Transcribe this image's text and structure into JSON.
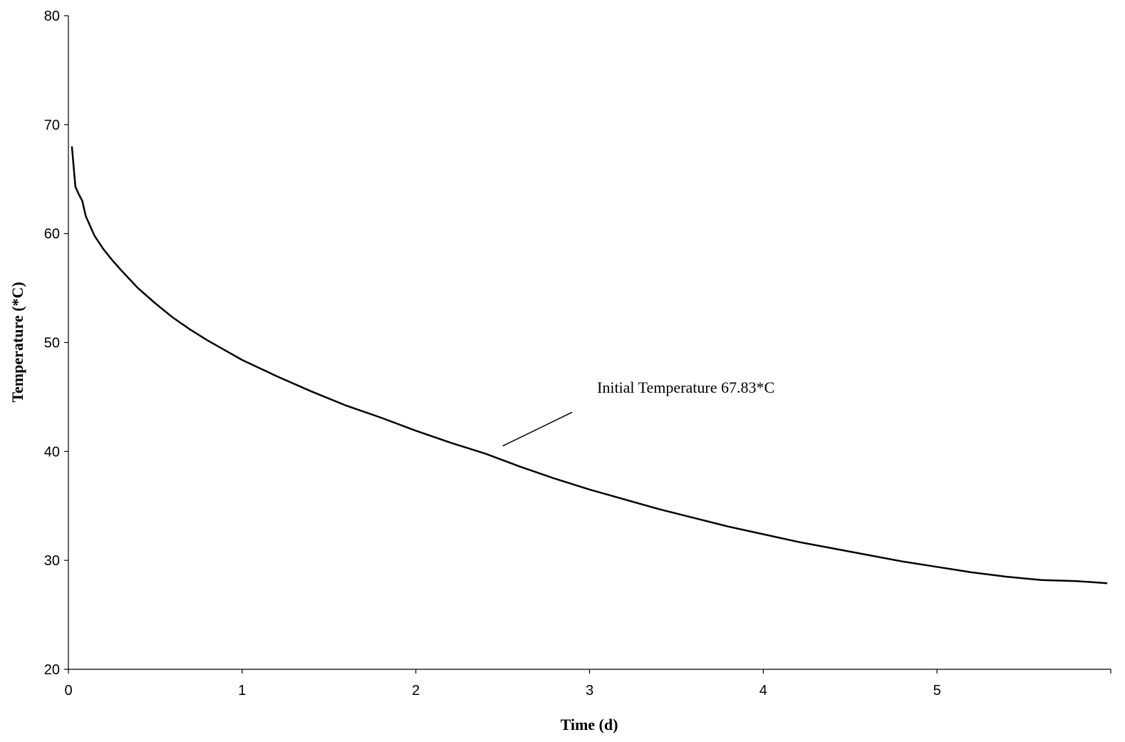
{
  "chart_data": {
    "type": "line",
    "title": "",
    "xlabel": "Time (d)",
    "ylabel": "Temperature (*C)",
    "xlim": [
      0,
      6
    ],
    "ylim": [
      20,
      80
    ],
    "xticks": [
      0,
      1,
      2,
      3,
      4,
      5
    ],
    "yticks": [
      20,
      30,
      40,
      50,
      60,
      70,
      80
    ],
    "grid": false,
    "legend": "none",
    "line_color": "#000000",
    "annotation": {
      "text": "Initial Temperature 67.83*C",
      "pointer_from": [
        2.9,
        43.6
      ],
      "pointer_to": [
        2.5,
        40.5
      ]
    },
    "series": [
      {
        "x": [
          0.02,
          0.04,
          0.06,
          0.08,
          0.1,
          0.15,
          0.2,
          0.25,
          0.3,
          0.4,
          0.5,
          0.6,
          0.7,
          0.8,
          0.9,
          1.0,
          1.2,
          1.4,
          1.6,
          1.8,
          2.0,
          2.2,
          2.4,
          2.5,
          2.6,
          2.8,
          3.0,
          3.2,
          3.4,
          3.6,
          3.8,
          4.0,
          4.2,
          4.4,
          4.6,
          4.8,
          5.0,
          5.2,
          5.4,
          5.6,
          5.8,
          5.98
        ],
        "y": [
          68.0,
          64.3,
          63.6,
          63.0,
          61.6,
          59.8,
          58.6,
          57.6,
          56.7,
          55.0,
          53.6,
          52.3,
          51.2,
          50.2,
          49.3,
          48.4,
          46.9,
          45.5,
          44.2,
          43.1,
          41.9,
          40.8,
          39.8,
          39.2,
          38.6,
          37.5,
          36.5,
          35.6,
          34.7,
          33.9,
          33.1,
          32.4,
          31.7,
          31.1,
          30.5,
          29.9,
          29.4,
          28.9,
          28.5,
          28.2,
          28.1,
          27.9
        ]
      }
    ]
  }
}
